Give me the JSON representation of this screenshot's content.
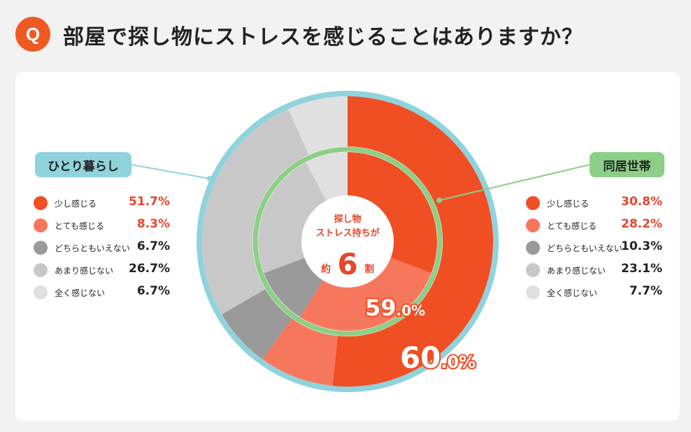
{
  "header": {
    "badge": "Q",
    "question": "部屋で探し物にストレスを感じることはありますか？"
  },
  "groups": {
    "left": {
      "label": "ひとり暮らし"
    },
    "right": {
      "label": "同居世帯"
    }
  },
  "legend_left": [
    {
      "label": "少し感じる",
      "value": "51.7%",
      "color": "#f04e23",
      "highlight": true
    },
    {
      "label": "とても感じる",
      "value": "8.3%",
      "color": "#f7775c",
      "highlight": true
    },
    {
      "label": "どちらともいえない",
      "value": "6.7%",
      "color": "#9a9a9a",
      "highlight": false
    },
    {
      "label": "あまり感じない",
      "value": "26.7%",
      "color": "#c8c8c8",
      "highlight": false
    },
    {
      "label": "全く感じない",
      "value": "6.7%",
      "color": "#e0e0e0",
      "highlight": false
    }
  ],
  "legend_right": [
    {
      "label": "少し感じる",
      "value": "30.8%",
      "color": "#f04e23",
      "highlight": true
    },
    {
      "label": "とても感じる",
      "value": "28.2%",
      "color": "#f7775c",
      "highlight": true
    },
    {
      "label": "どちらともいえない",
      "value": "10.3%",
      "color": "#9a9a9a",
      "highlight": false
    },
    {
      "label": "あまり感じない",
      "value": "23.1%",
      "color": "#c8c8c8",
      "highlight": false
    },
    {
      "label": "全く感じない",
      "value": "7.7%",
      "color": "#e0e0e0",
      "highlight": false
    }
  ],
  "center": {
    "line1": "探し物",
    "line2": "ストレス持ちが",
    "prefix": "約",
    "number": "6",
    "suffix": "割"
  },
  "colors": {
    "outer_ring": "#8fd3dc",
    "inner_ring": "#8ccf86",
    "accent": "#ef5a24"
  },
  "chart_data": {
    "type": "pie",
    "title": "部屋で探し物にストレスを感じることはありますか？",
    "categories": [
      "少し感じる",
      "とても感じる",
      "どちらともいえない",
      "あまり感じない",
      "全く感じない"
    ],
    "series": [
      {
        "name": "ひとり暮らし",
        "ring": "outer",
        "values": [
          51.7,
          8.3,
          6.7,
          26.7,
          6.7
        ],
        "total_label": "60.0%"
      },
      {
        "name": "同居世帯",
        "ring": "inner",
        "values": [
          30.8,
          28.2,
          10.3,
          23.1,
          7.7
        ],
        "total_label": "59.0%"
      }
    ]
  }
}
